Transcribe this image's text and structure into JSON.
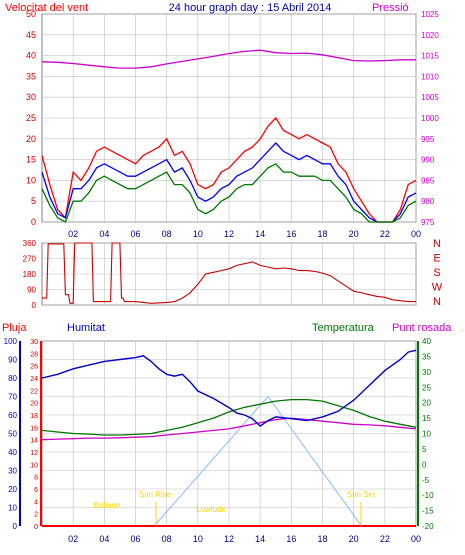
{
  "header": {
    "left_title": "Velocitat del vent",
    "center_title": "24 hour graph day : 15 Abril 2014",
    "right_title": "Pressió"
  },
  "colors": {
    "background": "#ffffff",
    "frame": "#808080",
    "grid": "#c0c0c0",
    "wind_gust": "#ff0000",
    "wind_avg": "#0000ff",
    "wind_dir": "#cc0000",
    "pressure": "#cc00cc",
    "humidity": "#0000cc",
    "temperature": "#007700",
    "dewpoint": "#cc00cc",
    "rain": "#ff0000",
    "solar": "#88bbff",
    "annotation": "#ffd700"
  },
  "chart_data": [
    {
      "id": "wind_pressure",
      "type": "line",
      "title": "24 hour graph day : 15 Abril 2014",
      "xlabel": "",
      "x_ticks": [
        "02",
        "04",
        "06",
        "08",
        "10",
        "12",
        "14",
        "16",
        "18",
        "20",
        "22",
        "00"
      ],
      "xlim": [
        0,
        24
      ],
      "left_axis": {
        "label": "Velocitat del vent",
        "ylim": [
          0,
          50
        ],
        "ticks": [
          "0",
          "5",
          "10",
          "15",
          "20",
          "25",
          "30",
          "35",
          "40",
          "45",
          "50"
        ]
      },
      "right_axis": {
        "label": "Pressió",
        "ylim": [
          975,
          1025
        ],
        "ticks": [
          "975",
          "980",
          "985",
          "990",
          "995",
          "1000",
          "1005",
          "1010",
          "1015",
          "1020",
          "1025"
        ]
      },
      "grid": true,
      "series": [
        {
          "axis": "left",
          "x": [
            0,
            0.5,
            1,
            1.5,
            2,
            2.5,
            3,
            3.5,
            4,
            4.5,
            5,
            5.5,
            6,
            6.5,
            7,
            7.5,
            8,
            8.5,
            9,
            9.5,
            10,
            10.5,
            11,
            11.5,
            12,
            12.5,
            13,
            13.5,
            14,
            14.5,
            15,
            15.5,
            16,
            16.5,
            17,
            17.5,
            18,
            18.5,
            19,
            19.5,
            20,
            20.5,
            21,
            21.5,
            22,
            22.5,
            23,
            23.5,
            24
          ],
          "y": [
            16,
            9,
            3,
            1,
            12,
            10,
            13,
            17,
            18,
            17,
            16,
            15,
            14,
            16,
            17,
            18,
            20,
            16,
            17,
            14,
            9,
            8,
            9,
            12,
            13,
            15,
            17,
            18,
            20,
            23,
            25,
            22,
            21,
            20,
            21,
            20,
            19,
            18,
            14,
            12,
            8,
            5,
            2,
            0,
            0,
            0,
            3,
            9,
            10
          ]
        },
        {
          "axis": "left",
          "x": [
            0,
            0.5,
            1,
            1.5,
            2,
            2.5,
            3,
            3.5,
            4,
            4.5,
            5,
            5.5,
            6,
            6.5,
            7,
            7.5,
            8,
            8.5,
            9,
            9.5,
            10,
            10.5,
            11,
            11.5,
            12,
            12.5,
            13,
            13.5,
            14,
            14.5,
            15,
            15.5,
            16,
            16.5,
            17,
            17.5,
            18,
            18.5,
            19,
            19.5,
            20,
            20.5,
            21,
            21.5,
            22,
            22.5,
            23,
            23.5,
            24
          ],
          "y": [
            12,
            6,
            2,
            1,
            8,
            8,
            10,
            13,
            14,
            13,
            12,
            11,
            11,
            12,
            13,
            14,
            15,
            12,
            13,
            10,
            6,
            5,
            6,
            8,
            9,
            11,
            12,
            13,
            15,
            17,
            19,
            17,
            16,
            15,
            16,
            15,
            14,
            14,
            11,
            9,
            5,
            3,
            1,
            0,
            0,
            0,
            2,
            6,
            7
          ]
        },
        {
          "axis": "left",
          "x": [
            0,
            0.5,
            1,
            1.5,
            2,
            2.5,
            3,
            3.5,
            4,
            4.5,
            5,
            5.5,
            6,
            6.5,
            7,
            7.5,
            8,
            8.5,
            9,
            9.5,
            10,
            10.5,
            11,
            11.5,
            12,
            12.5,
            13,
            13.5,
            14,
            14.5,
            15,
            15.5,
            16,
            16.5,
            17,
            17.5,
            18,
            18.5,
            19,
            19.5,
            20,
            20.5,
            21,
            21.5,
            22,
            22.5,
            23,
            23.5,
            24
          ],
          "y": [
            8,
            4,
            1,
            0,
            5,
            5,
            7,
            10,
            11,
            10,
            9,
            8,
            8,
            9,
            10,
            11,
            12,
            9,
            9,
            7,
            3,
            2,
            3,
            5,
            6,
            8,
            9,
            9,
            11,
            13,
            14,
            12,
            12,
            11,
            11,
            11,
            10,
            10,
            8,
            6,
            3,
            2,
            0,
            0,
            0,
            0,
            1,
            4,
            5
          ]
        },
        {
          "axis": "right",
          "x": [
            0,
            1,
            2,
            3,
            4,
            5,
            6,
            7,
            8,
            9,
            10,
            11,
            12,
            13,
            14,
            15,
            16,
            17,
            18,
            19,
            20,
            21,
            22,
            23,
            24
          ],
          "y": [
            1013.5,
            1013.4,
            1013.1,
            1012.7,
            1012.3,
            1012,
            1012,
            1012.3,
            1013,
            1013.6,
            1014.2,
            1014.8,
            1015.5,
            1016,
            1016.3,
            1015.7,
            1015.5,
            1015.6,
            1015.2,
            1014.5,
            1013.8,
            1013.7,
            1013.8,
            1014,
            1014
          ]
        }
      ]
    },
    {
      "id": "wind_direction",
      "type": "line",
      "xlim": [
        0,
        24
      ],
      "ylim": [
        0,
        360
      ],
      "y_ticks": [
        "0",
        "90",
        "180",
        "270",
        "360"
      ],
      "compass_labels": [
        "N",
        "W",
        "S",
        "E",
        "N"
      ],
      "grid": true,
      "series": [
        {
          "x": [
            0,
            0.3,
            0.4,
            1.4,
            1.5,
            1.7,
            1.8,
            2,
            2.1,
            3.2,
            3.3,
            4.4,
            4.5,
            5,
            5.1,
            5.2,
            5.3,
            6,
            7,
            8,
            8.5,
            9,
            9.5,
            10,
            10.5,
            11,
            11.5,
            12,
            12.5,
            13,
            13.5,
            14,
            14.5,
            15,
            15.5,
            16,
            16.5,
            17,
            17.5,
            18,
            18.5,
            19,
            19.5,
            20,
            20.5,
            21,
            21.5,
            22,
            22.5,
            23,
            23.5,
            24
          ],
          "y": [
            40,
            40,
            355,
            355,
            60,
            60,
            10,
            10,
            360,
            360,
            20,
            20,
            360,
            360,
            40,
            40,
            20,
            20,
            10,
            15,
            20,
            40,
            70,
            120,
            180,
            190,
            200,
            210,
            230,
            240,
            250,
            230,
            220,
            210,
            215,
            210,
            200,
            200,
            195,
            185,
            170,
            140,
            110,
            80,
            70,
            60,
            50,
            45,
            30,
            25,
            20,
            20
          ]
        }
      ]
    },
    {
      "id": "temp_humidity",
      "type": "line",
      "labels": {
        "rain": "Pluja",
        "humidity": "Humitat",
        "temperature": "Temperatura",
        "dewpoint": "Punt rosada"
      },
      "xlim": [
        0,
        24
      ],
      "axis_humidity": {
        "ylim": [
          0,
          100
        ],
        "ticks": [
          "0",
          "10",
          "20",
          "30",
          "40",
          "50",
          "60",
          "70",
          "80",
          "90",
          "100"
        ]
      },
      "axis_rain": {
        "ylim": [
          0,
          30
        ],
        "ticks": [
          "0",
          "2",
          "4",
          "6",
          "8",
          "10",
          "12",
          "14",
          "16",
          "18",
          "20",
          "22",
          "24",
          "26",
          "28",
          "30"
        ]
      },
      "axis_temperature": {
        "ylim": [
          -20,
          40
        ],
        "ticks": [
          "-20",
          "-15",
          "-10",
          "-5",
          "0",
          "5",
          "10",
          "15",
          "20",
          "25",
          "30",
          "35",
          "40"
        ]
      },
      "grid": true,
      "annotations": [
        "Brillade",
        "Sun Rise",
        "Lowlude",
        "Sun Set"
      ],
      "series": [
        {
          "id": "humidity",
          "axis": "humidity",
          "x": [
            0,
            1,
            2,
            3,
            4,
            5,
            6,
            6.5,
            7,
            7.5,
            8,
            8.5,
            9,
            9.5,
            10,
            11,
            12,
            12.5,
            13,
            13.5,
            14,
            14.5,
            15,
            16,
            17,
            18,
            19,
            20,
            21,
            22,
            23,
            23.5,
            24
          ],
          "y": [
            80,
            82,
            85,
            87,
            89,
            90,
            91,
            92,
            89,
            85,
            82,
            81,
            82,
            78,
            73,
            69,
            64,
            61,
            60,
            58,
            54,
            57,
            59,
            58,
            57,
            59,
            62,
            68,
            76,
            84,
            90,
            94,
            95
          ]
        },
        {
          "id": "temperature",
          "axis": "temperature",
          "x": [
            0,
            1,
            2,
            3,
            4,
            5,
            6,
            7,
            8,
            9,
            10,
            11,
            12,
            13,
            14,
            15,
            16,
            17,
            18,
            19,
            20,
            21,
            22,
            23,
            24
          ],
          "y": [
            11,
            10.5,
            10,
            9.8,
            9.5,
            9.5,
            9.7,
            10,
            11,
            12,
            13.5,
            15,
            17,
            18.5,
            19.5,
            20.5,
            21,
            21,
            20.5,
            19,
            17.5,
            15.5,
            14,
            13,
            12
          ]
        },
        {
          "id": "dewpoint",
          "axis": "temperature",
          "x": [
            0,
            1,
            2,
            3,
            4,
            5,
            6,
            7,
            8,
            9,
            10,
            11,
            12,
            13,
            14,
            15,
            16,
            17,
            18,
            19,
            20,
            21,
            22,
            23,
            24
          ],
          "y": [
            8,
            8.2,
            8.3,
            8.5,
            8.5,
            8.6,
            8.8,
            9,
            9.5,
            10,
            10.5,
            11,
            11.5,
            12.5,
            13.5,
            14.5,
            15,
            14.5,
            14,
            13.5,
            13,
            12.8,
            12.5,
            12,
            11.5
          ]
        },
        {
          "id": "rain",
          "axis": "rain",
          "x": [
            0,
            24
          ],
          "y": [
            0,
            0
          ]
        },
        {
          "id": "solar",
          "axis": "temperature",
          "x": [
            7.2,
            14.5,
            20.5
          ],
          "y": [
            -20,
            22,
            -20
          ]
        }
      ]
    }
  ]
}
